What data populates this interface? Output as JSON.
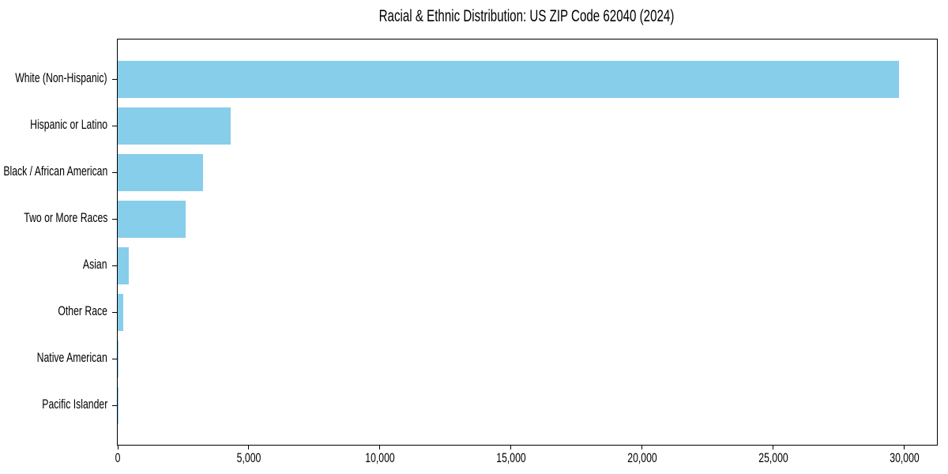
{
  "figure": {
    "background": "#ffffff",
    "spine_color": "#000000",
    "text_color": "#000000"
  },
  "chart_data": {
    "type": "bar",
    "orientation": "horizontal",
    "title": "Racial & Ethnic Distribution: US ZIP Code 62040 (2024)",
    "categories": [
      "White (Non-Hispanic)",
      "Hispanic or Latino",
      "Black / African American",
      "Two or More Races",
      "Asian",
      "Other Race",
      "Native American",
      "Pacific Islander"
    ],
    "values": [
      29810,
      4310,
      3250,
      2590,
      420,
      200,
      20,
      10
    ],
    "bar_color": "#87ceeb",
    "xlabel": "",
    "ylabel": "",
    "xlim": [
      0,
      31250
    ],
    "x_ticks": [
      0,
      5000,
      10000,
      15000,
      20000,
      25000,
      30000
    ],
    "x_tick_labels": [
      "0",
      "5,000",
      "10,000",
      "15,000",
      "20,000",
      "25,000",
      "30,000"
    ],
    "grid": false,
    "legend": false
  }
}
